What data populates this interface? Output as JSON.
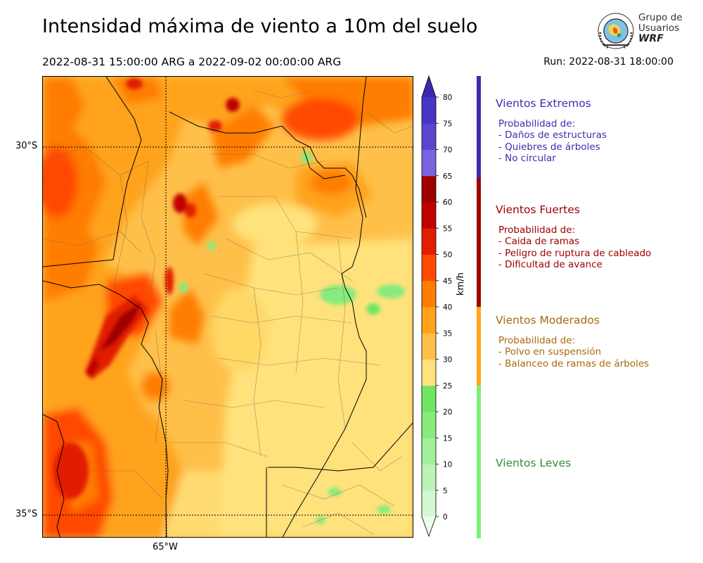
{
  "header": {
    "title": "Intensidad máxima de viento a 10m del suelo",
    "period": "2022-08-31 15:00:00 ARG  a  2022-09-02 00:00:00 ARG",
    "run": "Run: 2022-08-31 18:00:00"
  },
  "logo": {
    "line1": "Grupo de",
    "line2": "Usuarios",
    "line3": "WRF"
  },
  "map": {
    "lat_labels": [
      "30°S",
      "35°S"
    ],
    "lon_labels": [
      "65°W"
    ]
  },
  "colorbar": {
    "unit": "km/h",
    "ticks": [
      "0",
      "5",
      "10",
      "15",
      "20",
      "25",
      "30",
      "35",
      "40",
      "45",
      "50",
      "55",
      "60",
      "65",
      "70",
      "75",
      "80"
    ],
    "colors": [
      "#ecfcec",
      "#d4f8d2",
      "#bcf4b6",
      "#a2ef9a",
      "#86ea7c",
      "#6ee662",
      "#ffe27c",
      "#ffc04a",
      "#ffa31a",
      "#ff7d00",
      "#ff4a00",
      "#e11f00",
      "#c00000",
      "#9e0000",
      "#7a63dd",
      "#5a46cf",
      "#4636c3",
      "#3a28b0"
    ]
  },
  "categories": [
    {
      "title": "Vientos Extremos",
      "color": "#3b2eae",
      "lines": [
        "Probabilidad de:",
        "- Daños de estructuras",
        "- Quiebres de árboles",
        "- No circular"
      ]
    },
    {
      "title": "Vientos Fuertes",
      "color": "#a00000",
      "lines": [
        "Probabilidad de:",
        "- Caida de ramas",
        "- Peligro de ruptura de cableado",
        "- Dificultad de avance"
      ]
    },
    {
      "title": "Vientos Moderados",
      "color": "#a86a0a",
      "lines": [
        "Probabilidad de:",
        "- Polvo en suspensión",
        "- Balanceo de ramas de árboles"
      ]
    },
    {
      "title": "Vientos Leves",
      "color": "#3a8a3a",
      "lines": []
    }
  ],
  "category_bar_colors": [
    "#3b2eae",
    "#a00000",
    "#ffa31a",
    "#7ef07a"
  ]
}
